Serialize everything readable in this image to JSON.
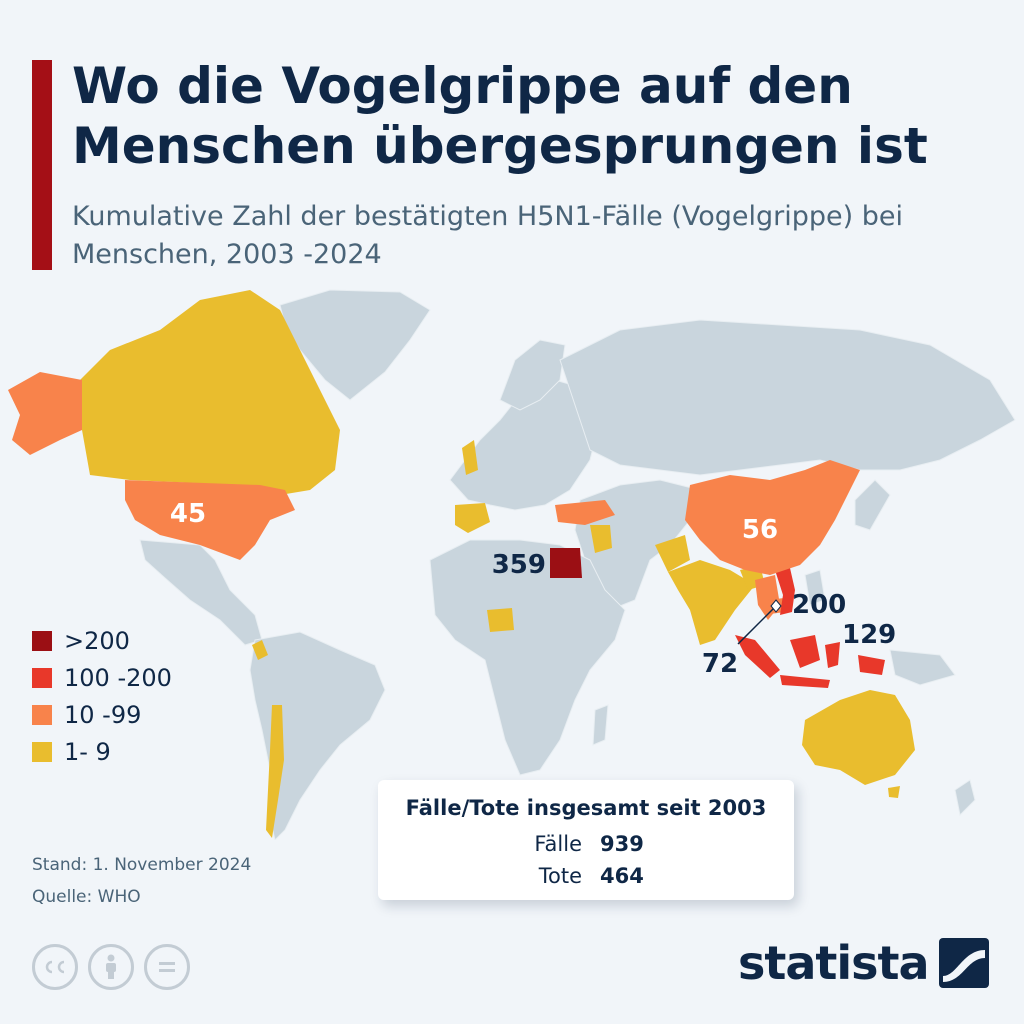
{
  "header": {
    "title": "Wo die Vogelgrippe auf den Menschen übergesprungen ist",
    "subtitle": "Kumulative Zahl der bestätigten H5N1-Fälle (Vogelgrippe) bei Menschen, 2003 -2024"
  },
  "colors": {
    "accent": "#a40f16",
    "gt200": "#9b0f14",
    "r100_200": "#e8382a",
    "r10_99": "#f8834b",
    "r1_9": "#e9bd2e",
    "land": "#c9d5dd",
    "background": "#f1f5f9",
    "text": "#0f2746"
  },
  "map_labels": [
    {
      "id": "usa",
      "value": "45"
    },
    {
      "id": "china",
      "value": "56"
    },
    {
      "id": "egypt",
      "value": "359"
    },
    {
      "id": "vietnam",
      "value": "200"
    },
    {
      "id": "indonesia",
      "value": "129"
    },
    {
      "id": "cambodia",
      "value": "72"
    }
  ],
  "legend": [
    {
      "label": ">200",
      "color": "#9b0f14"
    },
    {
      "label": "100 -200",
      "color": "#e8382a"
    },
    {
      "label": "10 -99",
      "color": "#f8834b"
    },
    {
      "label": "1- 9",
      "color": "#e9bd2e"
    }
  ],
  "totals": {
    "title": "Fälle/Tote insgesamt seit 2003",
    "cases_label": "Fälle",
    "cases_value": "939",
    "deaths_label": "Tote",
    "deaths_value": "464"
  },
  "footer": {
    "stand": "Stand: 1. November 2024",
    "source": "Quelle: WHO",
    "brand": "statista"
  }
}
